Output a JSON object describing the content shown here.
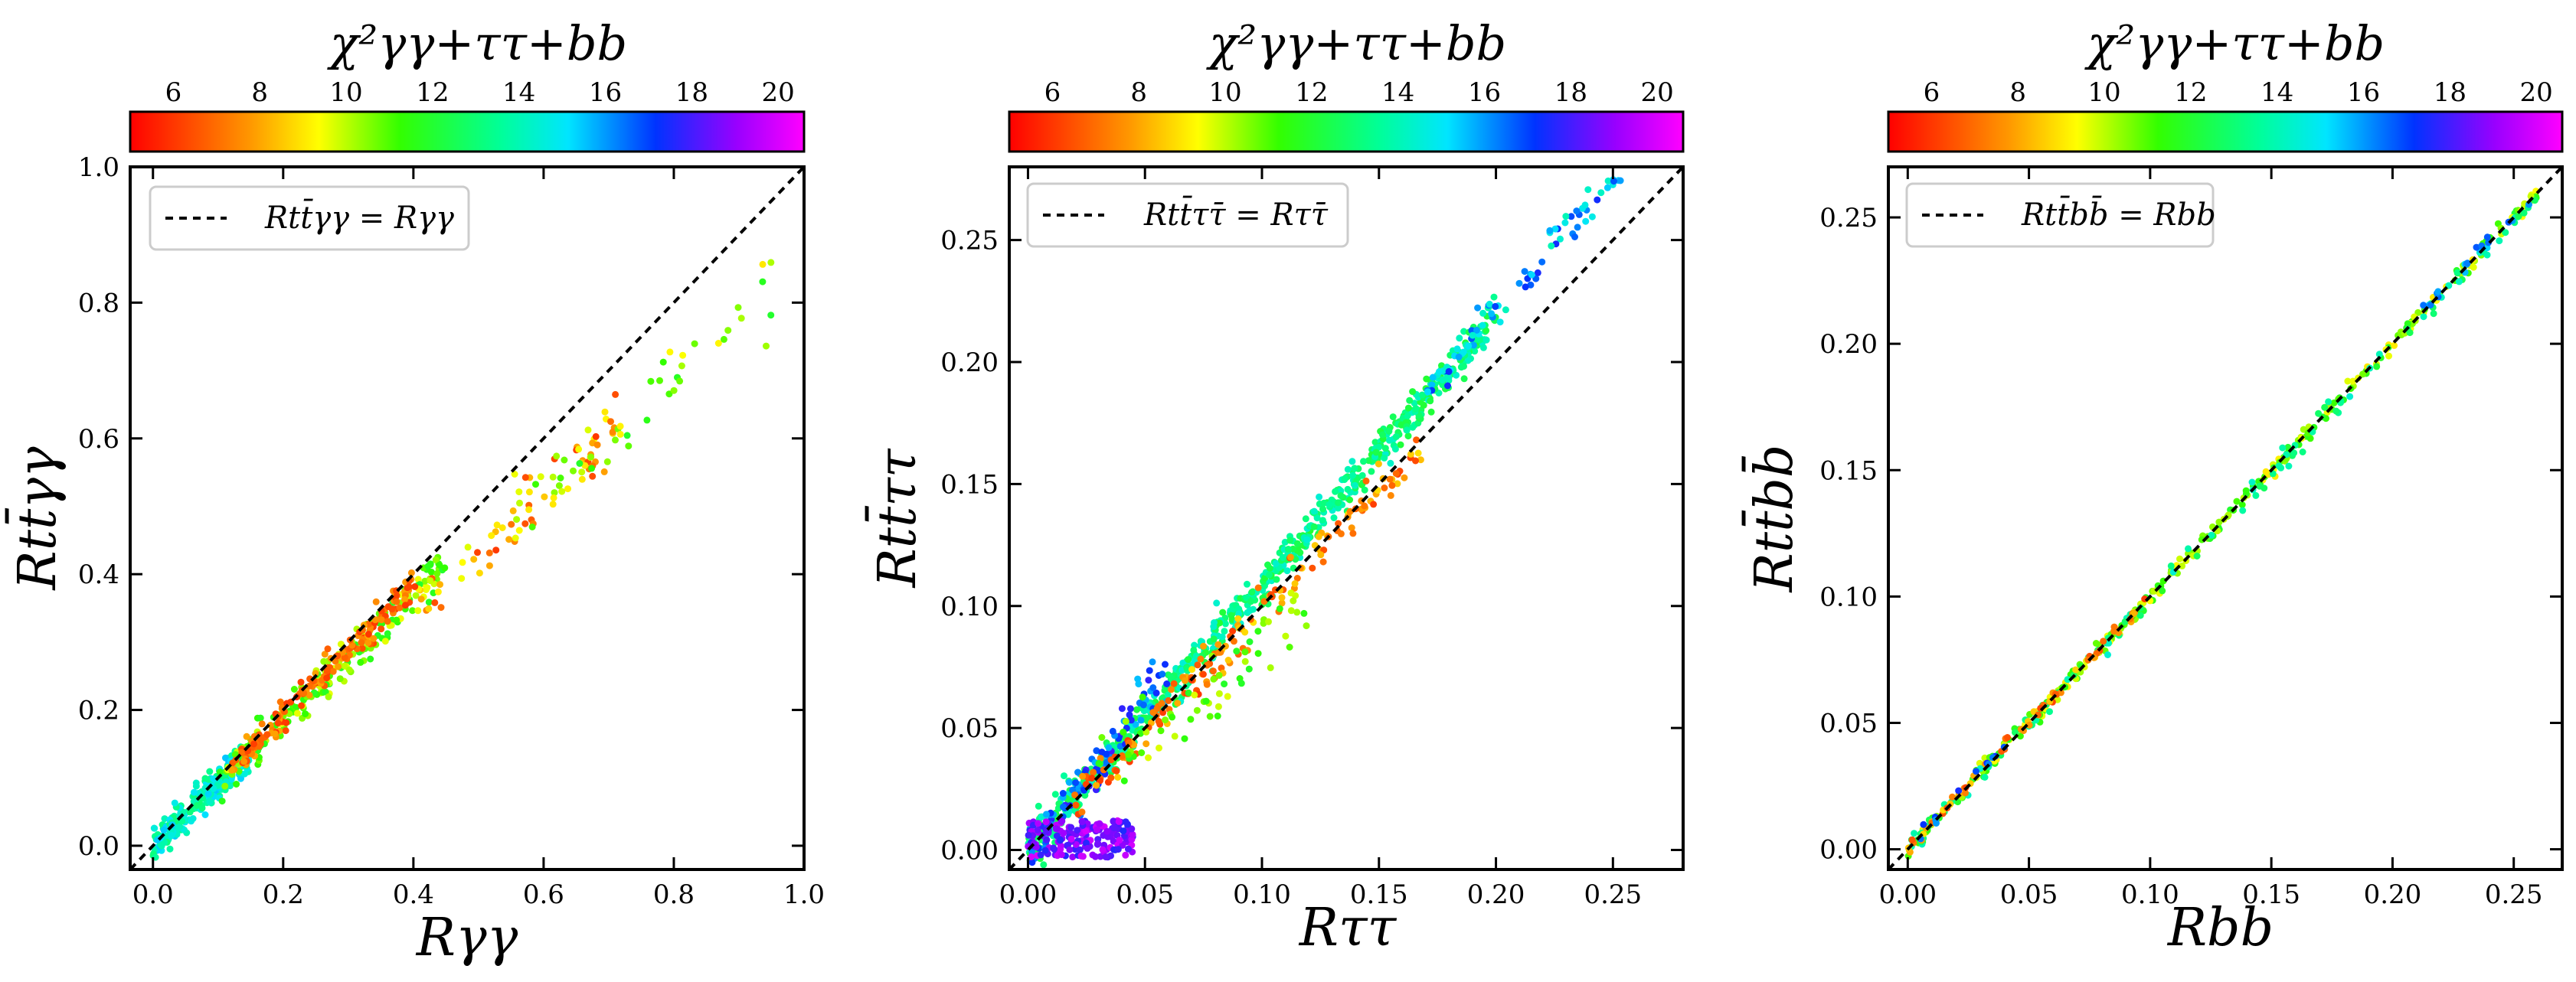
{
  "chart_data": [
    {
      "type": "scatter",
      "id": "yy",
      "colorbar": {
        "title": "χ²γγ+ττ+bb",
        "range": [
          5,
          20.6
        ],
        "ticks": [
          "6",
          "8",
          "10",
          "12",
          "14",
          "16",
          "18",
          "20"
        ]
      },
      "xlabel": "Rγγ",
      "ylabel": "Rtt̄γγ",
      "xlim": [
        -0.035,
        1.0
      ],
      "ylim": [
        -0.035,
        1.0
      ],
      "xticks": [
        "0.0",
        "0.2",
        "0.4",
        "0.6",
        "0.8",
        "1.0"
      ],
      "yticks": [
        "0.0",
        "0.2",
        "0.4",
        "0.6",
        "0.8",
        "1.0"
      ],
      "legend": {
        "label": "Rtt̄γγ = Rγγ",
        "style": "dashed black",
        "location": "upper-left"
      },
      "reference_line": {
        "slope": 1,
        "intercept": 0
      },
      "point_bands": [
        {
          "x_range": [
            0.0,
            0.15
          ],
          "y_slope": 0.93,
          "spread": 0.012,
          "chi2_range": [
            13,
            15.5
          ],
          "count": 240
        },
        {
          "x_range": [
            0.1,
            0.45
          ],
          "y_slope": 0.92,
          "spread": 0.015,
          "chi2_range": [
            9.5,
            12
          ],
          "count": 220
        },
        {
          "x_range": [
            0.12,
            0.4
          ],
          "y_slope": 0.955,
          "spread": 0.012,
          "chi2_range": [
            6,
            8
          ],
          "count": 160
        },
        {
          "x_range": [
            0.4,
            0.72
          ],
          "y_slope": 0.87,
          "spread": 0.025,
          "chi2_range": [
            6,
            10
          ],
          "count": 70
        },
        {
          "x_range": [
            0.55,
            0.96
          ],
          "y_slope": 0.87,
          "spread": 0.03,
          "chi2_range": [
            9,
            12
          ],
          "count": 50
        }
      ]
    },
    {
      "type": "scatter",
      "id": "tautau",
      "colorbar": {
        "title": "χ²γγ+ττ+bb",
        "range": [
          5,
          20.6
        ],
        "ticks": [
          "6",
          "8",
          "10",
          "12",
          "14",
          "16",
          "18",
          "20"
        ]
      },
      "xlabel": "Rττ",
      "ylabel": "Rtt̄ττ",
      "xlim": [
        -0.008,
        0.28
      ],
      "ylim": [
        -0.008,
        0.28
      ],
      "xticks": [
        "0.00",
        "0.05",
        "0.10",
        "0.15",
        "0.20",
        "0.25"
      ],
      "yticks": [
        "0.00",
        "0.05",
        "0.10",
        "0.15",
        "0.20",
        "0.25"
      ],
      "legend": {
        "label": "Rtt̄ττ̄ = Rττ̄",
        "style": "dashed black",
        "location": "upper-left"
      },
      "reference_line": {
        "slope": 1,
        "intercept": 0
      },
      "point_bands": [
        {
          "x_range": [
            0.0,
            0.2
          ],
          "y_slope": 1.09,
          "spread": 0.004,
          "chi2_range": [
            12,
            14.5
          ],
          "count": 700
        },
        {
          "x_range": [
            0.17,
            0.26
          ],
          "y_slope": 1.1,
          "spread": 0.004,
          "chi2_range": [
            14,
            17.5
          ],
          "count": 90
        },
        {
          "x_range": [
            0.0,
            0.06
          ],
          "y_slope": 1.2,
          "spread": 0.006,
          "chi2_range": [
            15.5,
            18
          ],
          "count": 90
        },
        {
          "x_range": [
            0.02,
            0.17
          ],
          "y_slope": 0.98,
          "spread": 0.004,
          "chi2_range": [
            6,
            9
          ],
          "count": 160
        },
        {
          "x_range": [
            0.03,
            0.12
          ],
          "y_slope": 0.86,
          "spread": 0.008,
          "chi2_range": [
            9.5,
            12
          ],
          "count": 60
        },
        {
          "x_range": [
            0.0,
            0.045
          ],
          "y_range": [
            -0.003,
            0.012
          ],
          "chi2_range": [
            17.5,
            20
          ],
          "count": 180
        }
      ]
    },
    {
      "type": "scatter",
      "id": "bb",
      "colorbar": {
        "title": "χ²γγ+ττ+bb",
        "range": [
          5,
          20.6
        ],
        "ticks": [
          "6",
          "8",
          "10",
          "12",
          "14",
          "16",
          "18",
          "20"
        ]
      },
      "xlabel": "Rbb",
      "ylabel": "Rtt̄bb̄",
      "xlim": [
        -0.008,
        0.27
      ],
      "ylim": [
        -0.008,
        0.27
      ],
      "xticks": [
        "0.00",
        "0.05",
        "0.10",
        "0.15",
        "0.20",
        "0.25"
      ],
      "yticks": [
        "0.00",
        "0.05",
        "0.10",
        "0.15",
        "0.20",
        "0.25"
      ],
      "legend": {
        "label": "Rtt̄bb̄ = Rbb",
        "style": "dashed black",
        "location": "upper-left"
      },
      "reference_line": {
        "slope": 1,
        "intercept": 0
      },
      "point_bands": [
        {
          "x_range": [
            0.0,
            0.26
          ],
          "y_slope": 1.0,
          "spread": 0.0015,
          "chi2_range": [
            9,
            12
          ],
          "count": 300
        },
        {
          "x_range": [
            0.0,
            0.26
          ],
          "y_slope": 0.995,
          "spread": 0.002,
          "chi2_range": [
            12.5,
            14.5
          ],
          "count": 100
        },
        {
          "x_range": [
            0.0,
            0.1
          ],
          "y_slope": 1.0,
          "spread": 0.0015,
          "chi2_range": [
            6,
            9
          ],
          "count": 60
        },
        {
          "x_range": [
            0.2,
            0.265
          ],
          "y_slope": 1.0,
          "spread": 0.0015,
          "chi2_range": [
            15,
            17
          ],
          "count": 20
        },
        {
          "x_range": [
            0.005,
            0.04
          ],
          "y_slope": 1.05,
          "spread": 0.002,
          "chi2_range": [
            15.5,
            17.5
          ],
          "count": 12
        }
      ]
    }
  ]
}
